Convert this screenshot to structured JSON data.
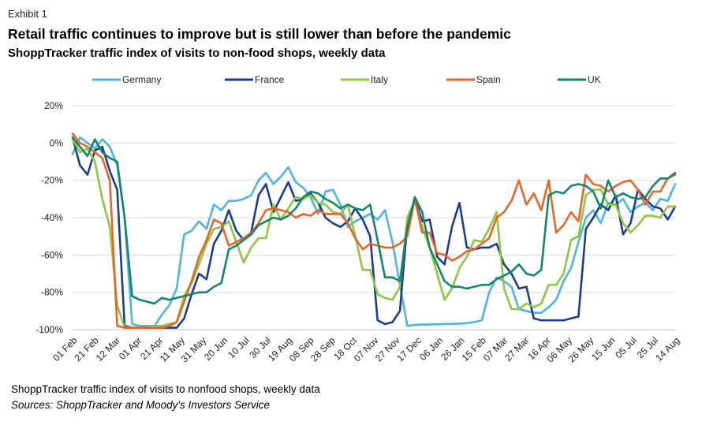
{
  "header": {
    "exhibit": "Exhibit 1",
    "title": "Retail traffic continues to improve but is still lower than before the pandemic",
    "subtitle": "ShoppTracker traffic index of visits to non-food shops, weekly data"
  },
  "footer": {
    "note": "ShoppTracker traffic index of visits to nonfood shops, weekly data",
    "source": "Sources: ShoppTracker and Moody's Investors Service"
  },
  "chart_data": {
    "type": "line",
    "title": "",
    "xlabel": "",
    "ylabel": "",
    "ylim": [
      -100,
      20
    ],
    "y_ticks": [
      20,
      0,
      -20,
      -40,
      -60,
      -80,
      -100
    ],
    "y_tick_labels": [
      "20%",
      "0%",
      "-20%",
      "-40%",
      "-60%",
      "-80%",
      "-100%"
    ],
    "x_tick_labels": [
      "01 Feb",
      "21 Feb",
      "12 Mar",
      "01 Apr",
      "21 Apr",
      "11 May",
      "31 May",
      "20 Jun",
      "10 Jul",
      "30 Jul",
      "19 Aug",
      "08 Sep",
      "28 Sep",
      "18 Oct",
      "07 Nov",
      "27 Nov",
      "17 Dec",
      "06 Jan",
      "26 Jan",
      "15 Feb",
      "07 Mar",
      "27 Mar",
      "16 Apr",
      "06 May",
      "26 May",
      "15 Jun",
      "05 Jul",
      "25 Jul",
      "14 Aug"
    ],
    "n_weeks": 82,
    "grid": "horizontal",
    "legend_position": "top",
    "series": [
      {
        "name": "Germany",
        "color": "#4fb3e3",
        "values": [
          -6,
          3,
          0,
          -3,
          2,
          -2,
          -12,
          -40,
          -97,
          -98,
          -98,
          -98,
          -92,
          -87,
          -78,
          -49,
          -47,
          -42,
          -46,
          -33,
          -36,
          -31,
          -31,
          -30,
          -28,
          -20,
          -16,
          -22,
          -18,
          -13,
          -21,
          -24,
          -29,
          -38,
          -26,
          -25,
          -33,
          -45,
          -42,
          -40,
          -38,
          -41,
          -36,
          -53,
          -76,
          -98,
          -97.5,
          -97.3,
          -97.2,
          -97.1,
          -97,
          -96.9,
          -96.8,
          -96.5,
          -96,
          -95,
          -80,
          -72,
          -74,
          -77,
          -89,
          -90,
          -91,
          -91,
          -88,
          -84,
          -74,
          -67,
          -53,
          -40,
          -36,
          -43,
          -32,
          -33,
          -30,
          -37,
          -34,
          -32,
          -36,
          -30,
          -31,
          -22
        ]
      },
      {
        "name": "France",
        "color": "#1b3d8f",
        "values": [
          3,
          -12,
          -17,
          -4,
          -2,
          -15,
          -25,
          -98,
          -99,
          -99,
          -99,
          -99,
          -99,
          -99,
          -99,
          -94,
          -81,
          -70,
          -73,
          -54,
          -47,
          -36,
          -47,
          -52,
          -48,
          -28,
          -22,
          -37,
          -29,
          -21,
          -31,
          -30,
          -27,
          -32,
          -40,
          -43,
          -45,
          -42,
          -35,
          -41,
          -50,
          -95,
          -97,
          -96,
          -90,
          -43,
          -30,
          -42,
          -41,
          -61,
          -65,
          -45,
          -32,
          -56,
          -57,
          -56,
          -56,
          -54,
          -65,
          -70,
          -78,
          -77,
          -94,
          -95,
          -95,
          -95,
          -95,
          -94,
          -93,
          -46,
          -40,
          -33,
          -36,
          -28,
          -49,
          -43,
          -25,
          -30,
          -34,
          -35,
          -41,
          -34
        ]
      },
      {
        "name": "Italy",
        "color": "#8dc63f",
        "values": [
          2,
          -5,
          -3,
          -10,
          -30,
          -45,
          -87,
          -99,
          -99,
          -99,
          -99,
          -98,
          -98,
          -97,
          -96,
          -82,
          -75,
          -65,
          -54,
          -46,
          -45,
          -42,
          -53,
          -64,
          -56,
          -51,
          -51,
          -33,
          -41,
          -35,
          -29,
          -30,
          -28,
          -32,
          -33,
          -37,
          -38,
          -33,
          -50,
          -68,
          -68,
          -81,
          -83,
          -84,
          -77,
          -40,
          -31,
          -45,
          -56,
          -70,
          -84,
          -78,
          -67,
          -61,
          -52,
          -53,
          -46,
          -37,
          -78,
          -89,
          -89,
          -86,
          -88,
          -86,
          -76,
          -76,
          -70,
          -52,
          -50,
          -28,
          -25,
          -25,
          -33,
          -33,
          -43,
          -48,
          -44,
          -39,
          -39,
          -40,
          -34,
          -34
        ]
      },
      {
        "name": "Spain",
        "color": "#e8642a",
        "values": [
          5,
          0,
          -2,
          -5,
          -8,
          -20,
          -98,
          -99,
          -99,
          -99,
          -99,
          -99,
          -99,
          -98,
          -96,
          -85,
          -74,
          -61,
          -52,
          -41,
          -43,
          -55,
          -53,
          -51,
          -48,
          -43,
          -36,
          -35,
          -36,
          -37,
          -40,
          -38,
          -39,
          -36,
          -38,
          -38,
          -38,
          -43,
          -51,
          -57,
          -54,
          -55,
          -56,
          -56,
          -54,
          -50,
          -30,
          -48,
          -48,
          -59,
          -60,
          -63,
          -61,
          -58,
          -57,
          -54,
          -51,
          -40,
          -37,
          -31,
          -20,
          -33,
          -27,
          -36,
          -20,
          -48,
          -44,
          -37,
          -42,
          -17,
          -22,
          -23,
          -26,
          -23,
          -21,
          -20,
          -25,
          -33,
          -26,
          -26,
          -19,
          -17
        ]
      },
      {
        "name": "UK",
        "color": "#12876a",
        "values": [
          3,
          -2,
          -7,
          2,
          -5,
          -8,
          -10,
          -40,
          -82,
          -84,
          -85,
          -86,
          -83,
          -84,
          -83,
          -82,
          -81,
          -80,
          -80,
          -77,
          -75,
          -57,
          -55,
          -52,
          -49,
          -44,
          -42,
          -40,
          -41,
          -39,
          -35,
          -29,
          -26,
          -27,
          -30,
          -32,
          -35,
          -33,
          -35,
          -36,
          -33,
          -52,
          -72,
          -72,
          -74,
          -45,
          -29,
          -37,
          -56,
          -65,
          -74,
          -77,
          -77,
          -78,
          -77,
          -76,
          -76,
          -73,
          -71,
          -69,
          -65,
          -70,
          -71,
          -68,
          -28,
          -26,
          -27,
          -23,
          -22,
          -23,
          -26,
          -35,
          -20,
          -29,
          -27,
          -29,
          -30,
          -29,
          -23,
          -19,
          -19,
          -16
        ]
      }
    ]
  }
}
